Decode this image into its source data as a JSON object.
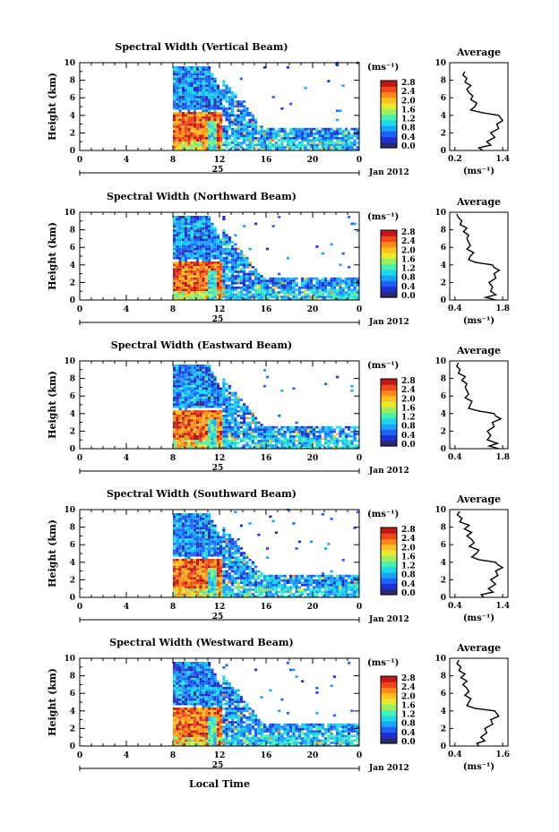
{
  "chart_data": {
    "type": "heatmap",
    "xlabel": "Local Time",
    "date_label": "Jan 2012",
    "day_label": "25",
    "colorbar_unit": "(ms⁻¹)",
    "colorbar_ticks": [
      "0.0",
      "0.4",
      "0.8",
      "1.2",
      "1.6",
      "2.0",
      "2.4",
      "2.8"
    ],
    "colorbar_range": [
      0.0,
      2.8
    ],
    "colormap": [
      "#2a2a6e",
      "#1f2fd0",
      "#1d63ff",
      "#17a4ff",
      "#1bd8ea",
      "#4bf0b0",
      "#9bf060",
      "#e8ea30",
      "#ffc020",
      "#ff8a18",
      "#f04818",
      "#c01818"
    ],
    "x_ticks": [
      "0",
      "4",
      "8",
      "12",
      "16",
      "20",
      "0"
    ],
    "x_range_hours": [
      0,
      24
    ],
    "y_ticks": [
      "0",
      "2",
      "4",
      "6",
      "8",
      "10"
    ],
    "y_range_km": [
      0,
      10
    ],
    "ylabel": "Height (km)",
    "panels": [
      {
        "title": "Spectral Width (Vertical Beam)",
        "average": {
          "title": "Average",
          "xlabel": "(ms⁻¹)",
          "xticks": [
            "0.2",
            "1.4"
          ],
          "xlim": [
            0.2,
            1.4
          ],
          "height_km": [
            0,
            0.3,
            0.6,
            1.0,
            1.5,
            2.0,
            2.5,
            3.0,
            3.4,
            3.7,
            4.0,
            4.3,
            4.6,
            5.0,
            5.4,
            5.8,
            6.2,
            6.6,
            7.0,
            7.4,
            7.8,
            8.2,
            8.6,
            9.0
          ],
          "value": [
            0.9,
            0.8,
            1.1,
            1.0,
            1.2,
            1.1,
            1.3,
            1.25,
            1.4,
            1.35,
            1.3,
            0.9,
            0.6,
            0.7,
            0.75,
            0.6,
            0.65,
            0.55,
            0.5,
            0.6,
            0.45,
            0.5,
            0.4,
            0.45
          ]
        }
      },
      {
        "title": "Spectral Width (Northward Beam)",
        "average": {
          "title": "Average",
          "xlabel": "(ms⁻¹)",
          "xticks": [
            "0.4",
            "1.8"
          ],
          "xlim": [
            0.4,
            1.8
          ],
          "height_km": [
            0,
            0.3,
            0.6,
            1.0,
            1.5,
            2.0,
            2.5,
            3.0,
            3.4,
            3.7,
            4.0,
            4.3,
            4.6,
            5.0,
            5.4,
            5.8,
            6.2,
            6.6,
            7.0,
            7.4,
            7.8,
            8.2,
            8.6,
            9.0,
            9.4,
            9.8
          ],
          "value": [
            1.6,
            1.3,
            1.6,
            1.45,
            1.5,
            1.4,
            1.6,
            1.55,
            1.7,
            1.55,
            1.5,
            1.0,
            0.8,
            0.85,
            0.95,
            0.75,
            0.85,
            0.8,
            0.75,
            0.8,
            0.65,
            0.75,
            0.55,
            0.6,
            0.5,
            0.45
          ]
        }
      },
      {
        "title": "Spectral Width (Eastward Beam)",
        "average": {
          "title": "Average",
          "xlabel": "",
          "xticks": [
            "0.4",
            "1.8"
          ],
          "xlim": [
            0.4,
            1.8
          ],
          "height_km": [
            0,
            0.3,
            0.6,
            1.0,
            1.5,
            2.0,
            2.5,
            3.0,
            3.4,
            3.7,
            4.0,
            4.3,
            4.6,
            5.0,
            5.4,
            5.8,
            6.2,
            6.6,
            7.0,
            7.4,
            7.8,
            8.2,
            8.6,
            9.0,
            9.4,
            9.8
          ],
          "value": [
            1.7,
            1.4,
            1.65,
            1.35,
            1.45,
            1.35,
            1.55,
            1.5,
            1.75,
            1.6,
            1.55,
            1.1,
            0.8,
            0.85,
            0.9,
            0.7,
            0.8,
            0.75,
            0.7,
            0.75,
            0.6,
            0.7,
            0.5,
            0.55,
            0.45,
            0.5
          ]
        }
      },
      {
        "title": "Spectral Width (Southward Beam)",
        "average": {
          "title": "Average",
          "xlabel": "(ms⁻¹)",
          "xticks": [
            "0.4",
            "1.4"
          ],
          "xlim": [
            0.4,
            1.4
          ],
          "height_km": [
            0,
            0.3,
            0.6,
            1.0,
            1.5,
            2.0,
            2.5,
            3.0,
            3.4,
            3.7,
            4.0,
            4.3,
            4.6,
            5.0,
            5.4,
            5.8,
            6.2,
            6.6,
            7.0,
            7.4,
            7.8,
            8.2,
            8.6,
            9.0,
            9.4,
            9.8
          ],
          "value": [
            1.0,
            0.95,
            1.2,
            1.1,
            1.25,
            1.15,
            1.3,
            1.25,
            1.4,
            1.3,
            1.25,
            0.9,
            0.75,
            0.85,
            0.9,
            0.7,
            0.8,
            0.75,
            0.65,
            0.75,
            0.6,
            0.7,
            0.5,
            0.55,
            0.45,
            0.5
          ]
        }
      },
      {
        "title": "Spectral Width (Westward Beam)",
        "average": {
          "title": "Average",
          "xlabel": "(ms⁻¹)",
          "xticks": [
            "0.4",
            "1.6"
          ],
          "xlim": [
            0.4,
            1.6
          ],
          "height_km": [
            0,
            0.3,
            0.6,
            1.0,
            1.5,
            2.0,
            2.5,
            3.0,
            3.4,
            3.7,
            4.0,
            4.3,
            4.6,
            5.0,
            5.4,
            5.8,
            6.2,
            6.6,
            7.0,
            7.4,
            7.8,
            8.2,
            8.6,
            9.0,
            9.4,
            9.8
          ],
          "value": [
            1.0,
            0.95,
            1.15,
            1.05,
            1.2,
            1.15,
            1.35,
            1.3,
            1.5,
            1.45,
            1.4,
            0.9,
            0.7,
            0.75,
            0.8,
            0.65,
            0.75,
            0.7,
            0.6,
            0.7,
            0.55,
            0.65,
            0.5,
            0.55,
            0.45,
            0.5
          ]
        }
      }
    ]
  }
}
